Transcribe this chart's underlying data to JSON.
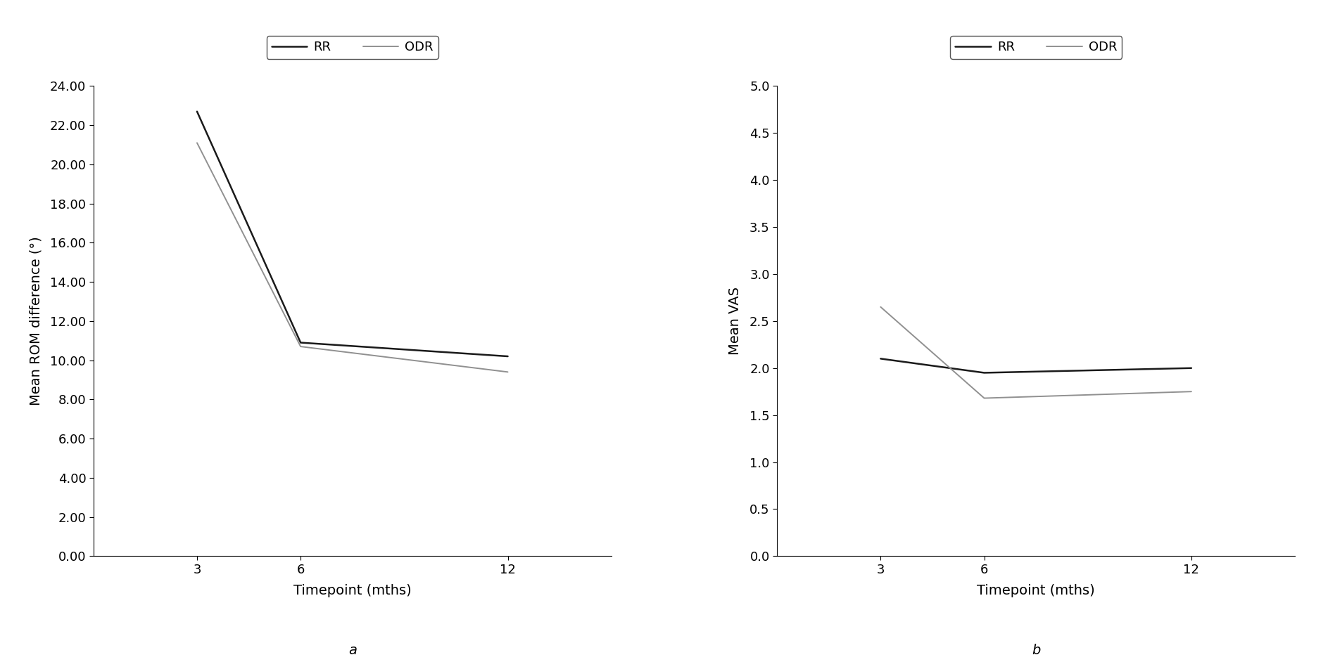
{
  "timepoints": [
    3,
    6,
    12
  ],
  "plot_a": {
    "RR": [
      22.7,
      10.9,
      10.2
    ],
    "ODR": [
      21.1,
      10.7,
      9.4
    ],
    "ylabel": "Mean ROM difference (°)",
    "xlabel": "Timepoint (mths)",
    "ylim": [
      0.0,
      24.0
    ],
    "yticks": [
      0.0,
      2.0,
      4.0,
      6.0,
      8.0,
      10.0,
      12.0,
      14.0,
      16.0,
      18.0,
      20.0,
      22.0,
      24.0
    ],
    "label": "a"
  },
  "plot_b": {
    "RR": [
      2.1,
      1.95,
      2.0
    ],
    "ODR": [
      2.65,
      1.68,
      1.75
    ],
    "ylabel": "Mean VAS",
    "xlabel": "Timepoint (mths)",
    "ylim": [
      0.0,
      5.0
    ],
    "yticks": [
      0.0,
      0.5,
      1.0,
      1.5,
      2.0,
      2.5,
      3.0,
      3.5,
      4.0,
      4.5,
      5.0
    ],
    "label": "b"
  },
  "xtick_positions": [
    3,
    6,
    12
  ],
  "xtick_labels": [
    "3",
    "6",
    "12"
  ],
  "xlim": [
    0,
    15
  ],
  "RR_color": "#1a1a1a",
  "ODR_color": "#909090",
  "RR_linewidth": 1.8,
  "ODR_linewidth": 1.4,
  "legend_labels": [
    "RR",
    "ODR"
  ],
  "background_color": "#ffffff",
  "fontsize_ticks": 13,
  "fontsize_labels": 14,
  "fontsize_legend": 13,
  "fontsize_sublabel": 14
}
